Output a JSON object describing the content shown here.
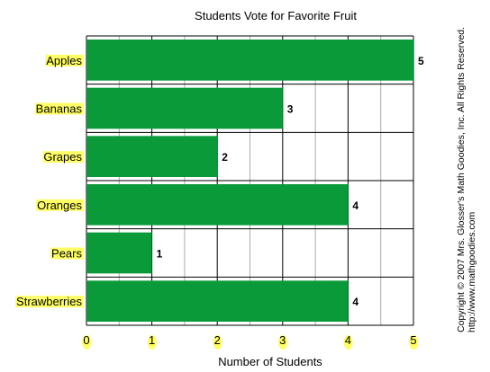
{
  "chart_data": {
    "type": "bar",
    "orientation": "horizontal",
    "title": "Students Vote for Favorite Fruit",
    "xlabel": "Number of Students",
    "ylabel": "",
    "categories": [
      "Apples",
      "Bananas",
      "Grapes",
      "Oranges",
      "Pears",
      "Strawberries"
    ],
    "values": [
      5,
      3,
      2,
      4,
      1,
      4
    ],
    "xlim": [
      0,
      5
    ],
    "x_ticks": [
      "0",
      "1",
      "2",
      "3",
      "4",
      "5"
    ],
    "grid": true,
    "minor_grid": true,
    "data_labels": [
      "5",
      "3",
      "2",
      "4",
      "1",
      "4"
    ]
  },
  "colors": {
    "bar": "#0b9a3a",
    "label_highlight": "#ffff66",
    "grid_major": "#000000",
    "grid_minor": "#aaaaaa"
  },
  "copyright": {
    "line1": "Copyright © 2007 Mrs. Glosser's Math Goodies, Inc. All Rights Reserved.",
    "line2": "http://www.mathgoodies.com"
  }
}
